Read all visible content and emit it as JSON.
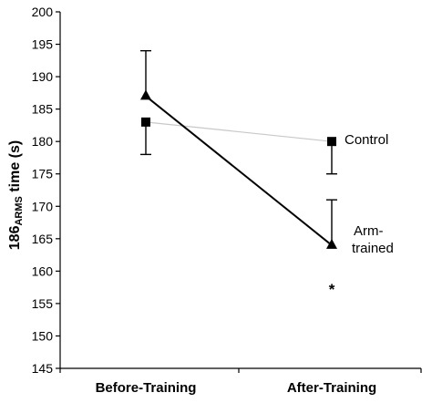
{
  "chart_data": {
    "type": "line",
    "categories": [
      "Before-Training",
      "After-Training"
    ],
    "ylabel_main": "186",
    "ylabel_sub": "ARMS",
    "ylabel_tail": " time (s)",
    "ylim": [
      145,
      200
    ],
    "yticks": [
      145,
      150,
      155,
      160,
      165,
      170,
      175,
      180,
      185,
      190,
      195,
      200
    ],
    "grid": false,
    "series": [
      {
        "name": "Control",
        "marker": "square",
        "color": "#c8c8c8",
        "values": [
          183,
          180
        ],
        "error": [
          5,
          5
        ],
        "error_direction": [
          "down",
          "down"
        ]
      },
      {
        "name": "Arm-trained",
        "name_lines": [
          "Arm-",
          "trained"
        ],
        "marker": "triangle",
        "color": "#000000",
        "values": [
          187,
          164
        ],
        "error": [
          7,
          7
        ],
        "error_direction": [
          "up",
          "up"
        ]
      }
    ],
    "annotations": [
      {
        "text": "*",
        "category": 1,
        "y": 157.5
      }
    ]
  }
}
